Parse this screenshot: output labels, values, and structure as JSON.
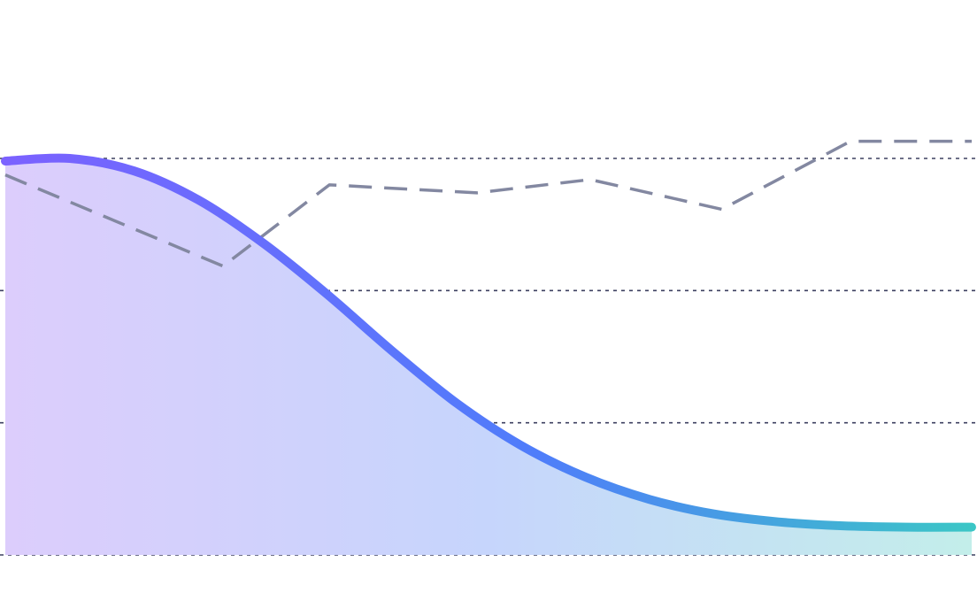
{
  "chart_data": {
    "type": "area",
    "title": "",
    "xlabel": "",
    "ylabel": "",
    "grid": true,
    "legend": "none",
    "x": [
      0,
      1,
      2,
      3,
      4,
      5,
      6,
      7,
      8,
      9,
      10,
      11,
      12,
      13,
      14,
      15
    ],
    "ylim": [
      0,
      60
    ],
    "series": [
      {
        "style": "smooth-area",
        "values": [
          59.6,
          60.0,
          58.1,
          53.7,
          47.2,
          39.4,
          30.9,
          23.0,
          16.6,
          11.8,
          8.4,
          6.2,
          5.0,
          4.4,
          4.2,
          4.2
        ],
        "gradient": [
          "#7b61ff",
          "#4f7dfa",
          "#3bc6c6"
        ],
        "fill_gradient": [
          "#dccdfc",
          "#c6d5fc",
          "#c3eeea"
        ]
      },
      {
        "style": "dashed-line",
        "color": "#8388a1",
        "points": [
          [
            0,
            57.5
          ],
          [
            3.38,
            43.7
          ],
          [
            5.03,
            56.0
          ],
          [
            7.32,
            54.8
          ],
          [
            9.08,
            56.8
          ],
          [
            11.12,
            52.3
          ],
          [
            13.12,
            62.6
          ],
          [
            15,
            62.6
          ]
        ]
      }
    ],
    "gridlines_y": [
      0,
      20,
      40,
      60
    ],
    "gridline_color": "#3d4060"
  }
}
